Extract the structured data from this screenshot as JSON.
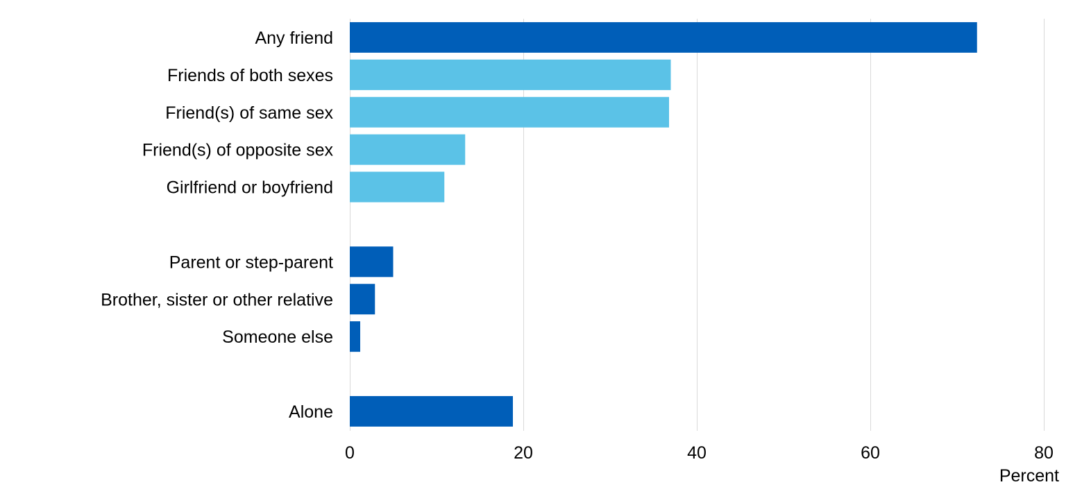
{
  "chart_data": {
    "type": "bar",
    "orientation": "horizontal",
    "categories": [
      "Any friend",
      "Friends of both sexes",
      "Friend(s) of same sex",
      "Friend(s) of opposite sex",
      "Girlfriend or boyfriend",
      "",
      "Parent or step-parent",
      "Brother, sister or other relative",
      "Someone else",
      "",
      "Alone"
    ],
    "values": [
      72.3,
      37.0,
      36.8,
      13.3,
      10.9,
      null,
      5.0,
      2.9,
      1.2,
      null,
      18.8
    ],
    "bar_colors": [
      "#005EB8",
      "#5BC2E7",
      "#5BC2E7",
      "#5BC2E7",
      "#5BC2E7",
      null,
      "#005EB8",
      "#005EB8",
      "#005EB8",
      null,
      "#005EB8"
    ],
    "xlim": [
      0,
      80
    ],
    "xticks": [
      0,
      20,
      40,
      60,
      80
    ],
    "xlabel": "Percent",
    "ylabel": "",
    "title": "",
    "grid": "vertical",
    "legend": "none"
  }
}
